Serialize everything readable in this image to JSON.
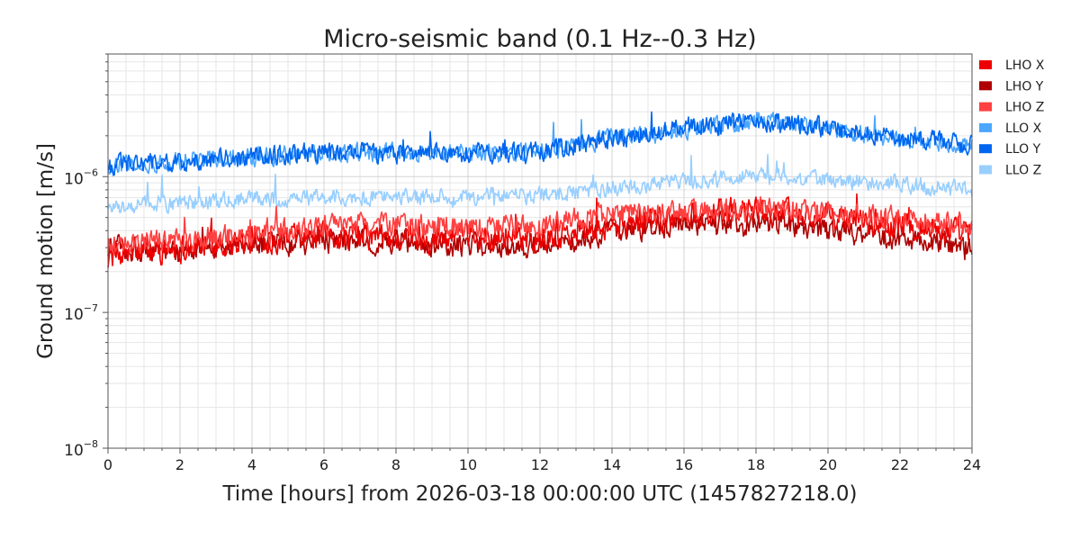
{
  "chart_data": {
    "type": "line",
    "title": "Micro-seismic band (0.1 Hz--0.3 Hz)",
    "xlabel": "Time [hours] from 2026-03-18 00:00:00 UTC (1457827218.0)",
    "ylabel": "Ground motion [m/s]",
    "x_scale": "linear",
    "y_scale": "log",
    "xlim": [
      0,
      24
    ],
    "ylim": [
      1e-08,
      8e-06
    ],
    "x_ticks": [
      "0",
      "2",
      "4",
      "6",
      "8",
      "10",
      "12",
      "14",
      "16",
      "18",
      "20",
      "22",
      "24"
    ],
    "y_ticks": [
      {
        "value": 1e-08,
        "base": "10",
        "exp": "−8"
      },
      {
        "value": 1e-07,
        "base": "10",
        "exp": "−7"
      },
      {
        "value": 1e-06,
        "base": "10",
        "exp": "−6"
      }
    ],
    "grid": true,
    "legend_position": "right",
    "x": [
      0,
      2,
      4,
      6,
      8,
      10,
      12,
      14,
      16,
      18,
      20,
      22,
      24
    ],
    "series": [
      {
        "name": "LHO X",
        "color": "#ee0000",
        "values": [
          2.6e-07,
          3e-07,
          3.4e-07,
          3.6e-07,
          3.6e-07,
          3.5e-07,
          3.6e-07,
          4.4e-07,
          5.2e-07,
          5.6e-07,
          5e-07,
          4.4e-07,
          3.8e-07
        ]
      },
      {
        "name": "LHO Y",
        "color": "#b00000",
        "values": [
          3e-07,
          2.8e-07,
          3.1e-07,
          3.3e-07,
          3.3e-07,
          3.1e-07,
          3.1e-07,
          3.9e-07,
          4.5e-07,
          4.6e-07,
          4e-07,
          3.5e-07,
          3.1e-07
        ]
      },
      {
        "name": "LHO Z",
        "color": "#ff4040",
        "values": [
          3.1e-07,
          3.4e-07,
          3.8e-07,
          4.4e-07,
          4.4e-07,
          4.2e-07,
          4.4e-07,
          5.3e-07,
          5.6e-07,
          5.9e-07,
          5.4e-07,
          4.9e-07,
          4.5e-07
        ]
      },
      {
        "name": "LLO X",
        "color": "#4ba6ff",
        "values": [
          1.2e-06,
          1.3e-06,
          1.4e-06,
          1.5e-06,
          1.5e-06,
          1.5e-06,
          1.5e-06,
          1.9e-06,
          2.2e-06,
          2.6e-06,
          2.3e-06,
          1.9e-06,
          1.7e-06
        ]
      },
      {
        "name": "LLO Y",
        "color": "#0066ee",
        "values": [
          1.2e-06,
          1.3e-06,
          1.4e-06,
          1.5e-06,
          1.5e-06,
          1.5e-06,
          1.5e-06,
          1.9e-06,
          2.3e-06,
          2.6e-06,
          2.3e-06,
          1.9e-06,
          1.7e-06
        ]
      },
      {
        "name": "LLO Z",
        "color": "#99cfff",
        "values": [
          6e-07,
          6.5e-07,
          6.8e-07,
          7e-07,
          7e-07,
          7e-07,
          7.3e-07,
          8.3e-07,
          9.3e-07,
          1e-06,
          9.5e-07,
          8.8e-07,
          8e-07
        ]
      }
    ]
  }
}
